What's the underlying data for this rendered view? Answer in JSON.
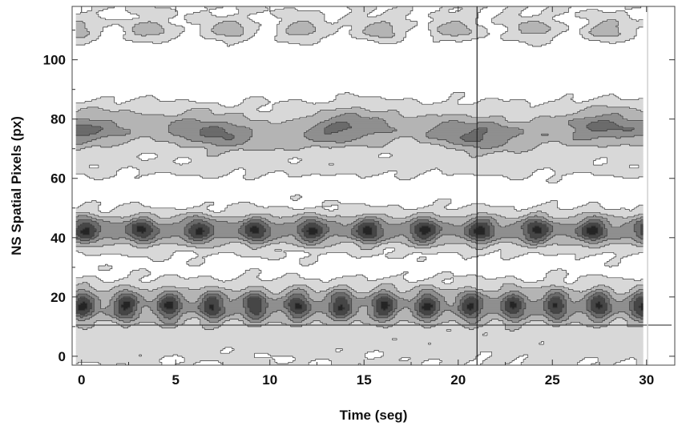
{
  "chart_data": {
    "type": "heatmap",
    "subtype": "contour",
    "title": "",
    "xlabel": "Time (seg)",
    "ylabel": "NS Spatial Pixels  (px)",
    "xlim": [
      -0.5,
      31.5
    ],
    "ylim": [
      -3,
      118
    ],
    "x_ticks": [
      0,
      5,
      10,
      15,
      20,
      25,
      30
    ],
    "x_tick_labels": [
      "0",
      "5",
      "10",
      "15",
      "20",
      "25",
      "30"
    ],
    "y_ticks": [
      0,
      20,
      40,
      60,
      80,
      100
    ],
    "y_tick_labels": [
      "0",
      "20",
      "40",
      "60",
      "80",
      "100"
    ],
    "data_time_range": [
      -0.3,
      29.8
    ],
    "colormap": [
      "#ffffff",
      "#d8d8d8",
      "#b4b4b4",
      "#8f8f8f",
      "#6b6b6b",
      "#464646",
      "#252525"
    ],
    "reference_lines": {
      "vertical_x": 21,
      "horizontal_y": 10.5,
      "right_edge_x": 29.8
    },
    "bands": [
      {
        "center_y": 17,
        "peak_level": 6,
        "oscillation_period_s": 2.2
      },
      {
        "center_y": 42.5,
        "peak_level": 6,
        "oscillation_period_s": 3.0
      },
      {
        "center_y": 76,
        "peak_level": 5,
        "oscillation_period_s": 5.0
      },
      {
        "center_y": 110,
        "peak_level": 3,
        "oscillation_period_s": 4.0
      }
    ]
  }
}
